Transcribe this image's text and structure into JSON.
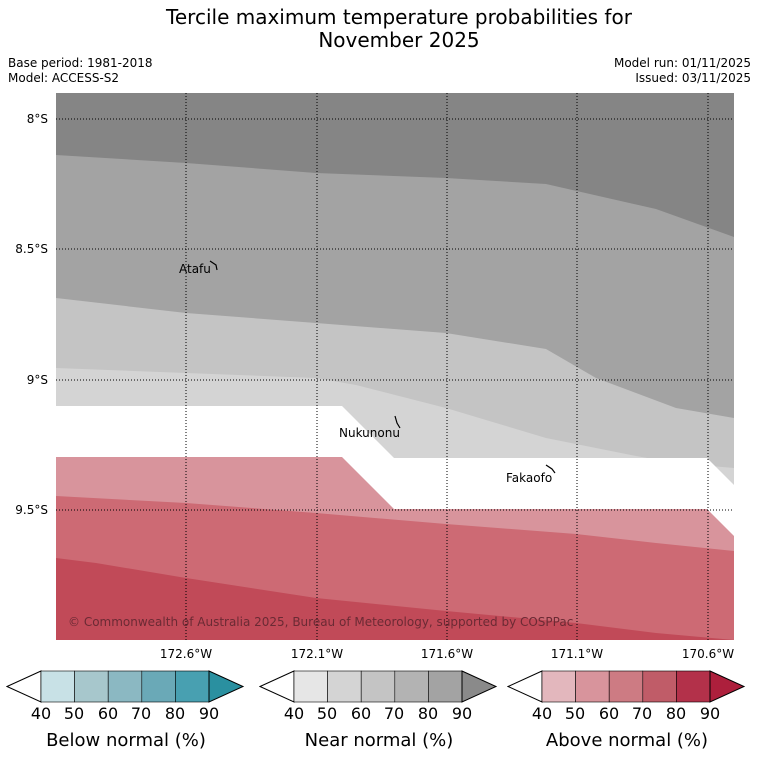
{
  "header": {
    "title_line1": "Tercile maximum temperature probabilities for",
    "title_line2": "November 2025",
    "base_period": "Base period: 1981-2018",
    "model": "Model: ACCESS-S2",
    "model_run": "Model run: 01/11/2025",
    "issued": "Issued: 03/11/2025"
  },
  "map": {
    "latitude_labels": [
      "8°S",
      "8.5°S",
      "9°S",
      "9.5°S"
    ],
    "longitude_labels": [
      "172.6°W",
      "172.1°W",
      "171.6°W",
      "171.1°W",
      "170.6°W"
    ],
    "places": [
      {
        "name": "Atafu"
      },
      {
        "name": "Nukunonu"
      },
      {
        "name": "Fakaofo"
      }
    ],
    "copyright": "© Commonwealth of Australia 2025, Bureau of Meteorology, supported by COSPPac"
  },
  "legend": {
    "ticks": [
      "40",
      "50",
      "60",
      "70",
      "80",
      "90"
    ],
    "below": {
      "title": "Below normal (%)",
      "colors": [
        "#ffffff",
        "#c8e1e6",
        "#a7c7cc",
        "#8bb8c2",
        "#6aa9b7",
        "#48a0b1",
        "#2a90a0"
      ]
    },
    "near": {
      "title": "Near normal (%)",
      "colors": [
        "#ffffff",
        "#e6e6e6",
        "#d4d4d4",
        "#c4c4c4",
        "#b3b3b3",
        "#a3a3a3",
        "#8a8a8a"
      ]
    },
    "above": {
      "title": "Above normal (%)",
      "colors": [
        "#ffffff",
        "#e3b7bd",
        "#d8949c",
        "#cd7b83",
        "#c05c68",
        "#b3314a",
        "#ad1f3c"
      ]
    }
  }
}
